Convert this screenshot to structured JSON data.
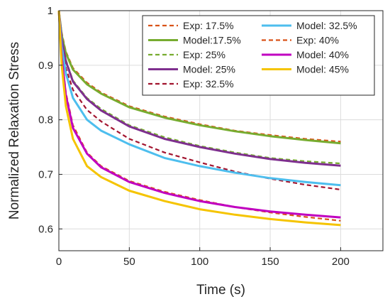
{
  "chart_data": {
    "type": "line",
    "xlabel": "Time (s)",
    "ylabel": "Normalized Relaxation Stress",
    "xlim": [
      0,
      230
    ],
    "ylim": [
      0.56,
      1.0
    ],
    "xticks": [
      "0",
      "50",
      "100",
      "150",
      "200"
    ],
    "yticks": [
      "0.6",
      "0.7",
      "0.8",
      "0.9",
      "1"
    ],
    "grid": true,
    "legend_placement": "top-right",
    "legend_columns": 2,
    "series": [
      {
        "name": "Exp: 17.5%",
        "style": "dashed",
        "color": "#D95319",
        "x": [
          0,
          2,
          5,
          10,
          20,
          30,
          50,
          75,
          100,
          125,
          150,
          175,
          200
        ],
        "y": [
          1.0,
          0.96,
          0.925,
          0.895,
          0.868,
          0.85,
          0.825,
          0.806,
          0.792,
          0.78,
          0.772,
          0.765,
          0.76
        ]
      },
      {
        "name": "Model:17.5%",
        "style": "solid",
        "color": "#77AC30",
        "x": [
          0,
          2,
          5,
          10,
          20,
          30,
          50,
          75,
          100,
          125,
          150,
          175,
          200
        ],
        "y": [
          1.0,
          0.955,
          0.922,
          0.892,
          0.865,
          0.848,
          0.823,
          0.804,
          0.79,
          0.779,
          0.77,
          0.763,
          0.757
        ]
      },
      {
        "name": "Exp: 25%",
        "style": "dashed",
        "color": "#77AC30",
        "x": [
          0,
          2,
          5,
          10,
          20,
          30,
          50,
          75,
          100,
          125,
          150,
          175,
          200
        ],
        "y": [
          1.0,
          0.95,
          0.91,
          0.872,
          0.84,
          0.82,
          0.79,
          0.768,
          0.752,
          0.74,
          0.73,
          0.724,
          0.72
        ]
      },
      {
        "name": "Model: 25%",
        "style": "solid",
        "color": "#7E2F8E",
        "x": [
          0,
          2,
          5,
          10,
          20,
          30,
          50,
          75,
          100,
          125,
          150,
          175,
          200
        ],
        "y": [
          1.0,
          0.948,
          0.907,
          0.87,
          0.838,
          0.817,
          0.788,
          0.765,
          0.75,
          0.738,
          0.728,
          0.721,
          0.716
        ]
      },
      {
        "name": "Exp: 32.5%",
        "style": "dashed",
        "color": "#A2142F",
        "x": [
          0,
          2,
          5,
          10,
          20,
          30,
          50,
          75,
          100,
          125,
          150,
          175,
          200
        ],
        "y": [
          1.0,
          0.94,
          0.895,
          0.855,
          0.818,
          0.797,
          0.765,
          0.74,
          0.722,
          0.705,
          0.692,
          0.681,
          0.672
        ]
      },
      {
        "name": "Model: 32.5%",
        "style": "solid",
        "color": "#4DBEEE",
        "x": [
          0,
          2,
          5,
          10,
          20,
          30,
          50,
          75,
          100,
          125,
          150,
          175,
          200
        ],
        "y": [
          1.0,
          0.935,
          0.885,
          0.84,
          0.8,
          0.78,
          0.755,
          0.73,
          0.715,
          0.703,
          0.693,
          0.686,
          0.68
        ]
      },
      {
        "name": "Exp: 40%",
        "style": "dashed",
        "color": "#D95319",
        "x": [
          0,
          2,
          5,
          10,
          20,
          30,
          50,
          75,
          100,
          125,
          150,
          175,
          200
        ],
        "y": [
          1.0,
          0.92,
          0.85,
          0.79,
          0.74,
          0.715,
          0.688,
          0.668,
          0.653,
          0.64,
          0.63,
          0.622,
          0.615
        ]
      },
      {
        "name": "Model: 40%",
        "style": "solid",
        "color": "#C000C0",
        "x": [
          0,
          2,
          5,
          10,
          20,
          30,
          50,
          75,
          100,
          125,
          150,
          175,
          200
        ],
        "y": [
          1.0,
          0.915,
          0.845,
          0.785,
          0.738,
          0.713,
          0.686,
          0.666,
          0.651,
          0.64,
          0.632,
          0.626,
          0.621
        ]
      },
      {
        "name": "Model: 45%",
        "style": "solid",
        "color": "#F5C400",
        "x": [
          0,
          2,
          5,
          10,
          20,
          30,
          50,
          75,
          100,
          125,
          150,
          175,
          200
        ],
        "y": [
          1.0,
          0.9,
          0.825,
          0.765,
          0.715,
          0.695,
          0.67,
          0.651,
          0.636,
          0.626,
          0.618,
          0.612,
          0.607
        ]
      }
    ]
  }
}
